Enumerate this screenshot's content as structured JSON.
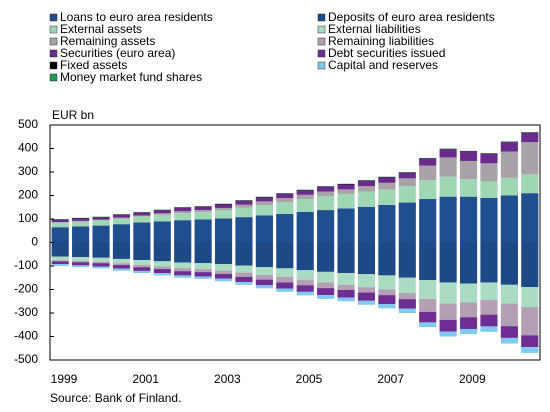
{
  "chart_data": {
    "type": "bar",
    "stacked": true,
    "y_label": "EUR bn",
    "source": "Source: Bank of Finland.",
    "categories": [
      "1999",
      null,
      null,
      null,
      "2001",
      null,
      null,
      null,
      "2003",
      null,
      null,
      null,
      "2005",
      null,
      null,
      null,
      "2007",
      null,
      null,
      null,
      "2009",
      null,
      null,
      null
    ],
    "ylim": [
      -500,
      500
    ],
    "yticks": [
      500,
      400,
      300,
      200,
      100,
      0,
      -100,
      -200,
      -300,
      -400,
      -500
    ],
    "grid": false,
    "series": [
      {
        "name": "Loans to euro area residents",
        "color": "#1f4f8e",
        "values": [
          65,
          68,
          72,
          78,
          85,
          90,
          95,
          98,
          102,
          108,
          115,
          122,
          130,
          138,
          145,
          152,
          160,
          170,
          185,
          195,
          195,
          190,
          200,
          210
        ]
      },
      {
        "name": "Deposits of euro area residents",
        "color": "#1d4a86",
        "values": [
          -60,
          -62,
          -65,
          -70,
          -75,
          -80,
          -85,
          -88,
          -92,
          -98,
          -105,
          -110,
          -118,
          -125,
          -130,
          -135,
          -140,
          -150,
          -160,
          -170,
          -175,
          -170,
          -180,
          -190
        ]
      },
      {
        "name": "External assets",
        "color": "#9fd6b4",
        "values": [
          20,
          21,
          22,
          24,
          26,
          28,
          30,
          32,
          35,
          40,
          45,
          50,
          55,
          60,
          62,
          65,
          65,
          70,
          80,
          85,
          75,
          70,
          75,
          80
        ]
      },
      {
        "name": "External liabilities",
        "color": "#a9dcc2",
        "values": [
          -15,
          -16,
          -17,
          -18,
          -20,
          -22,
          -24,
          -25,
          -28,
          -30,
          -33,
          -36,
          -40,
          -45,
          -50,
          -55,
          -60,
          -65,
          -80,
          -90,
          -80,
          -75,
          -80,
          -85
        ]
      },
      {
        "name": "Remaining assets",
        "color": "#a9a2a9",
        "values": [
          2,
          3,
          3,
          4,
          4,
          6,
          8,
          8,
          10,
          13,
          15,
          17,
          18,
          19,
          19,
          23,
          29,
          33,
          62,
          82,
          77,
          77,
          112,
          137
        ]
      },
      {
        "name": "Remaining liabilities",
        "color": "#b3a1b3",
        "values": [
          -5,
          -6,
          -6,
          -8,
          -10,
          -11,
          -13,
          -13,
          -14,
          -18,
          -20,
          -24,
          -24,
          -24,
          -22,
          -23,
          -24,
          -26,
          -55,
          -69,
          -63,
          -62,
          -96,
          -120
        ]
      },
      {
        "name": "Securities (euro area)",
        "color": "#6a2b8c",
        "values": [
          10,
          10,
          10,
          11,
          12,
          13,
          14,
          14,
          15,
          16,
          17,
          18,
          19,
          20,
          21,
          22,
          23,
          24,
          30,
          35,
          40,
          40,
          40,
          40
        ]
      },
      {
        "name": "Debt securities issued",
        "color": "#6d2d93",
        "values": [
          -12,
          -13,
          -14,
          -15,
          -16,
          -17,
          -18,
          -19,
          -20,
          -22,
          -24,
          -26,
          -28,
          -30,
          -32,
          -35,
          -38,
          -40,
          -45,
          -50,
          -50,
          -50,
          -50,
          -50
        ]
      },
      {
        "name": "Fixed assets",
        "color": "#000000",
        "values": [
          2,
          2,
          2,
          2,
          2,
          2,
          2,
          2,
          2,
          2,
          2,
          2,
          2,
          2,
          2,
          2,
          2,
          2,
          2,
          2,
          2,
          2,
          2,
          2
        ]
      },
      {
        "name": "Capital and reserves",
        "color": "#80c9f0",
        "values": [
          -8,
          -8,
          -8,
          -9,
          -9,
          -10,
          -10,
          -10,
          -11,
          -12,
          -13,
          -14,
          -15,
          -16,
          -16,
          -17,
          -18,
          -19,
          -20,
          -21,
          -22,
          -23,
          -24,
          -25
        ]
      },
      {
        "name": "Money market fund shares",
        "color": "#1a9a52",
        "values": [
          1,
          1,
          1,
          1,
          1,
          1,
          1,
          1,
          1,
          1,
          1,
          1,
          1,
          1,
          1,
          1,
          1,
          1,
          1,
          1,
          1,
          1,
          1,
          1
        ]
      }
    ]
  }
}
